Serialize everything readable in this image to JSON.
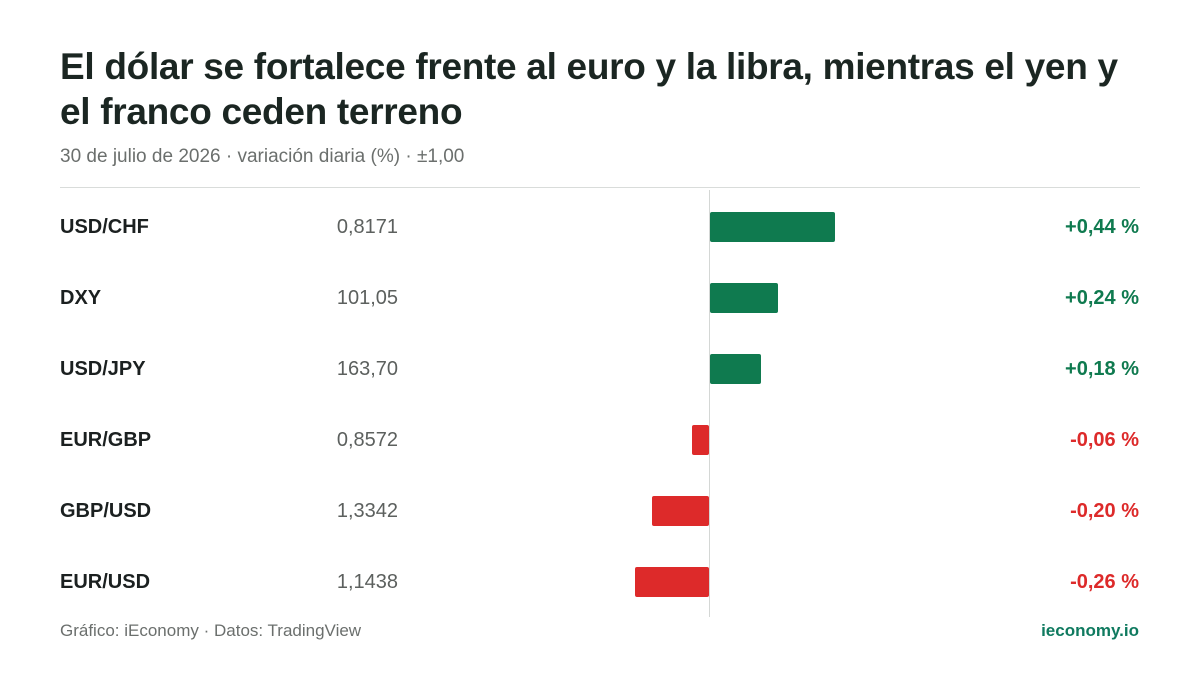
{
  "header": {
    "title": "El dólar se fortalece frente al euro y la libra, mientras el yen y el franco ceden terreno",
    "subtitle": "30 de julio de 2026 · variación diaria (%) · ±1,00"
  },
  "footer": {
    "source": "Gráfico: iEconomy · Datos: TradingView",
    "brand": "ieconomy.io"
  },
  "colors": {
    "positive": "#0f7a4f",
    "negative": "#dd2a2a",
    "brand": "#0f7a5f"
  },
  "chart_data": {
    "type": "bar",
    "orientation": "horizontal",
    "xlim": [
      -1,
      1
    ],
    "categories": [
      "USD/CHF",
      "DXY",
      "USD/JPY",
      "EUR/GBP",
      "GBP/USD",
      "EUR/USD"
    ],
    "prices": [
      "0,8171",
      "101,05",
      "163,70",
      "0,8572",
      "1,3342",
      "1,1438"
    ],
    "values": [
      0.44,
      0.24,
      0.18,
      -0.06,
      -0.2,
      -0.26
    ],
    "value_labels": [
      "+0,44 %",
      "+0,24 %",
      "+0,18 %",
      "-0,06 %",
      "-0,20 %",
      "-0,26 %"
    ]
  }
}
